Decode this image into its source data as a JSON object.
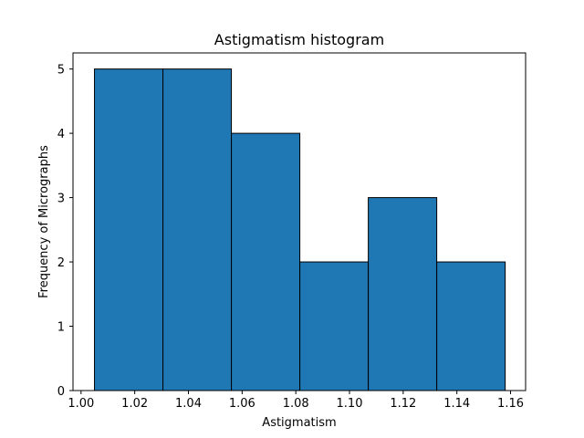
{
  "chart_data": {
    "type": "bar",
    "title": "Astigmatism histogram",
    "xlabel": "Astigmatism",
    "ylabel": "Frequency of Micrographs",
    "bins": [
      {
        "start": 1.005,
        "end": 1.0305,
        "value": 5
      },
      {
        "start": 1.0305,
        "end": 1.056,
        "value": 5
      },
      {
        "start": 1.056,
        "end": 1.0815,
        "value": 4
      },
      {
        "start": 1.0815,
        "end": 1.107,
        "value": 2
      },
      {
        "start": 1.107,
        "end": 1.1325,
        "value": 3
      },
      {
        "start": 1.1325,
        "end": 1.158,
        "value": 2
      }
    ],
    "xlim": [
      0.997,
      1.1656
    ],
    "ylim": [
      0,
      5.25
    ],
    "xticks": [
      "1.00",
      "1.02",
      "1.04",
      "1.06",
      "1.08",
      "1.10",
      "1.12",
      "1.14",
      "1.16"
    ],
    "yticks": [
      "0",
      "1",
      "2",
      "3",
      "4",
      "5"
    ],
    "grid": false,
    "bar_color": "#1f77b4",
    "edge_color": "#000000"
  }
}
